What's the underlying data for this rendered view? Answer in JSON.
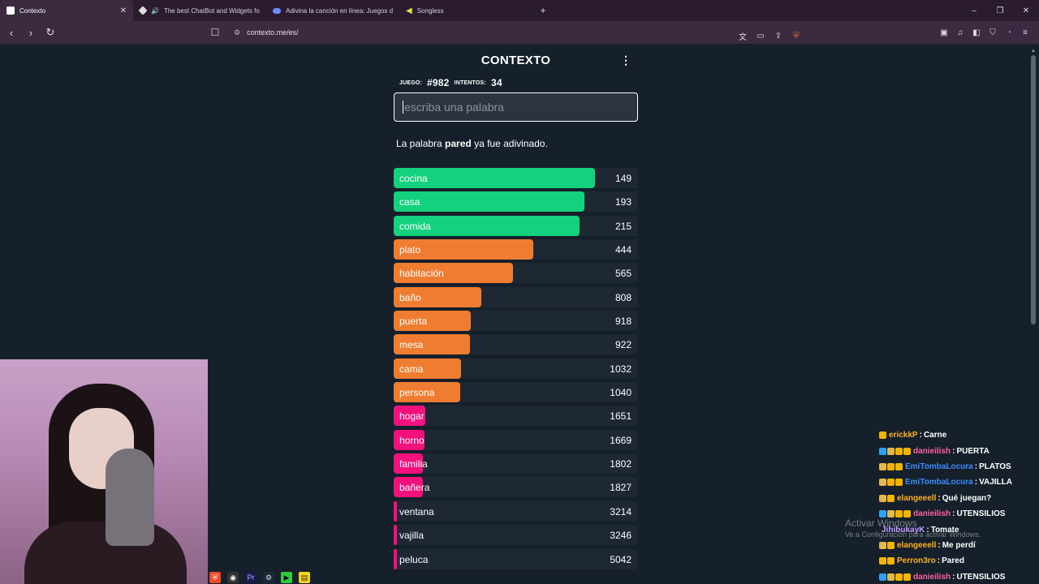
{
  "browser": {
    "tabs": [
      {
        "title": "Contexto",
        "favicon_color": "#ffffff",
        "active": true
      },
      {
        "title": "The best ChatBot and Widgets fo",
        "favicon_color": "#dddddd",
        "active": false
      },
      {
        "title": "Adivina la canción en línea: Juegos d",
        "favicon_color": "#6c8cff",
        "active": false
      },
      {
        "title": "Songless",
        "favicon_color": "#d7e34a",
        "active": false
      }
    ],
    "new_tab_glyph": "+",
    "url": "contexto.me/es/",
    "window_controls": {
      "minimize": "–",
      "restore": "❐",
      "close": "✕"
    }
  },
  "game": {
    "logo": "CONTEXTO",
    "menu_glyph": "⋮",
    "game_label": "JUEGO:",
    "game_number": "#982",
    "attempts_label": "INTENTOS:",
    "attempts": "34",
    "input_placeholder": "escriba una palabra",
    "message_prefix": "La palabra ",
    "message_word": "pared",
    "message_suffix": " ya fue adivinado.",
    "guesses": [
      {
        "word": "cocina",
        "distance": 149,
        "fill": 0.825,
        "color": "#13d17c"
      },
      {
        "word": "casa",
        "distance": 193,
        "fill": 0.78,
        "color": "#13d17c"
      },
      {
        "word": "comida",
        "distance": 215,
        "fill": 0.76,
        "color": "#13d17c"
      },
      {
        "word": "plato",
        "distance": 444,
        "fill": 0.57,
        "color": "#ef7d31"
      },
      {
        "word": "habitación",
        "distance": 565,
        "fill": 0.49,
        "color": "#ef7d31"
      },
      {
        "word": "baño",
        "distance": 808,
        "fill": 0.36,
        "color": "#ef7d31"
      },
      {
        "word": "puerta",
        "distance": 918,
        "fill": 0.315,
        "color": "#ef7d31"
      },
      {
        "word": "mesa",
        "distance": 922,
        "fill": 0.313,
        "color": "#ef7d31"
      },
      {
        "word": "cama",
        "distance": 1032,
        "fill": 0.275,
        "color": "#ef7d31"
      },
      {
        "word": "persona",
        "distance": 1040,
        "fill": 0.272,
        "color": "#ef7d31"
      },
      {
        "word": "hogar",
        "distance": 1651,
        "fill": 0.128,
        "color": "#f2117d"
      },
      {
        "word": "horno",
        "distance": 1669,
        "fill": 0.126,
        "color": "#f2117d"
      },
      {
        "word": "familia",
        "distance": 1802,
        "fill": 0.12,
        "color": "#f2117d"
      },
      {
        "word": "bañera",
        "distance": 1827,
        "fill": 0.118,
        "color": "#f2117d"
      },
      {
        "word": "ventana",
        "distance": 3214,
        "fill": 0.014,
        "color": "#f2117d"
      },
      {
        "word": "vajilla",
        "distance": 3246,
        "fill": 0.013,
        "color": "#f2117d"
      },
      {
        "word": "peluca",
        "distance": 5042,
        "fill": 0.01,
        "color": "#f2117d"
      }
    ]
  },
  "watermark": {
    "line1": "Activar Windows",
    "line2": "Ve a Configuración para activar Windows."
  },
  "chat": [
    {
      "user": "erickkP",
      "user_color": "#ffb01f",
      "text": "Carne",
      "badges": [
        "#f5b400"
      ]
    },
    {
      "user": "danieilish",
      "user_color": "#ff5fa2",
      "text": "PUERTA",
      "badges": [
        "#2aa3ff",
        "#e1b94c",
        "#f5b400",
        "#f5b400"
      ]
    },
    {
      "user": "EmiTombaLocura",
      "user_color": "#3b8dff",
      "text": "PLATOS",
      "badges": [
        "#e1b94c",
        "#f5b400",
        "#f5b400"
      ]
    },
    {
      "user": "EmiTombaLocura",
      "user_color": "#3b8dff",
      "text": "VAJILLA",
      "badges": [
        "#e1b94c",
        "#f5b400",
        "#f5b400"
      ]
    },
    {
      "user": "elangeeell",
      "user_color": "#ffb01f",
      "text": "Qué juegan?",
      "badges": [
        "#e1b94c",
        "#f5b400"
      ]
    },
    {
      "user": "danieilish",
      "user_color": "#ff5fa2",
      "text": "UTENSILIOS",
      "badges": [
        "#2aa3ff",
        "#e1b94c",
        "#f5b400",
        "#f5b400"
      ]
    },
    {
      "user": "JihibukayK",
      "user_color": "#c69cff",
      "text": "Tomate",
      "badges": []
    },
    {
      "user": "elangeeell",
      "user_color": "#ffb01f",
      "text": "Me perdí",
      "badges": [
        "#e1b94c",
        "#f5b400"
      ]
    },
    {
      "user": "Perron3ro",
      "user_color": "#ffb01f",
      "text": "Pared",
      "badges": [
        "#f5b400",
        "#f5b400"
      ]
    },
    {
      "user": "danieilish",
      "user_color": "#ff5fa2",
      "text": "UTENSILIOS",
      "badges": [
        "#2aa3ff",
        "#e1b94c",
        "#f5b400",
        "#f5b400"
      ]
    }
  ]
}
